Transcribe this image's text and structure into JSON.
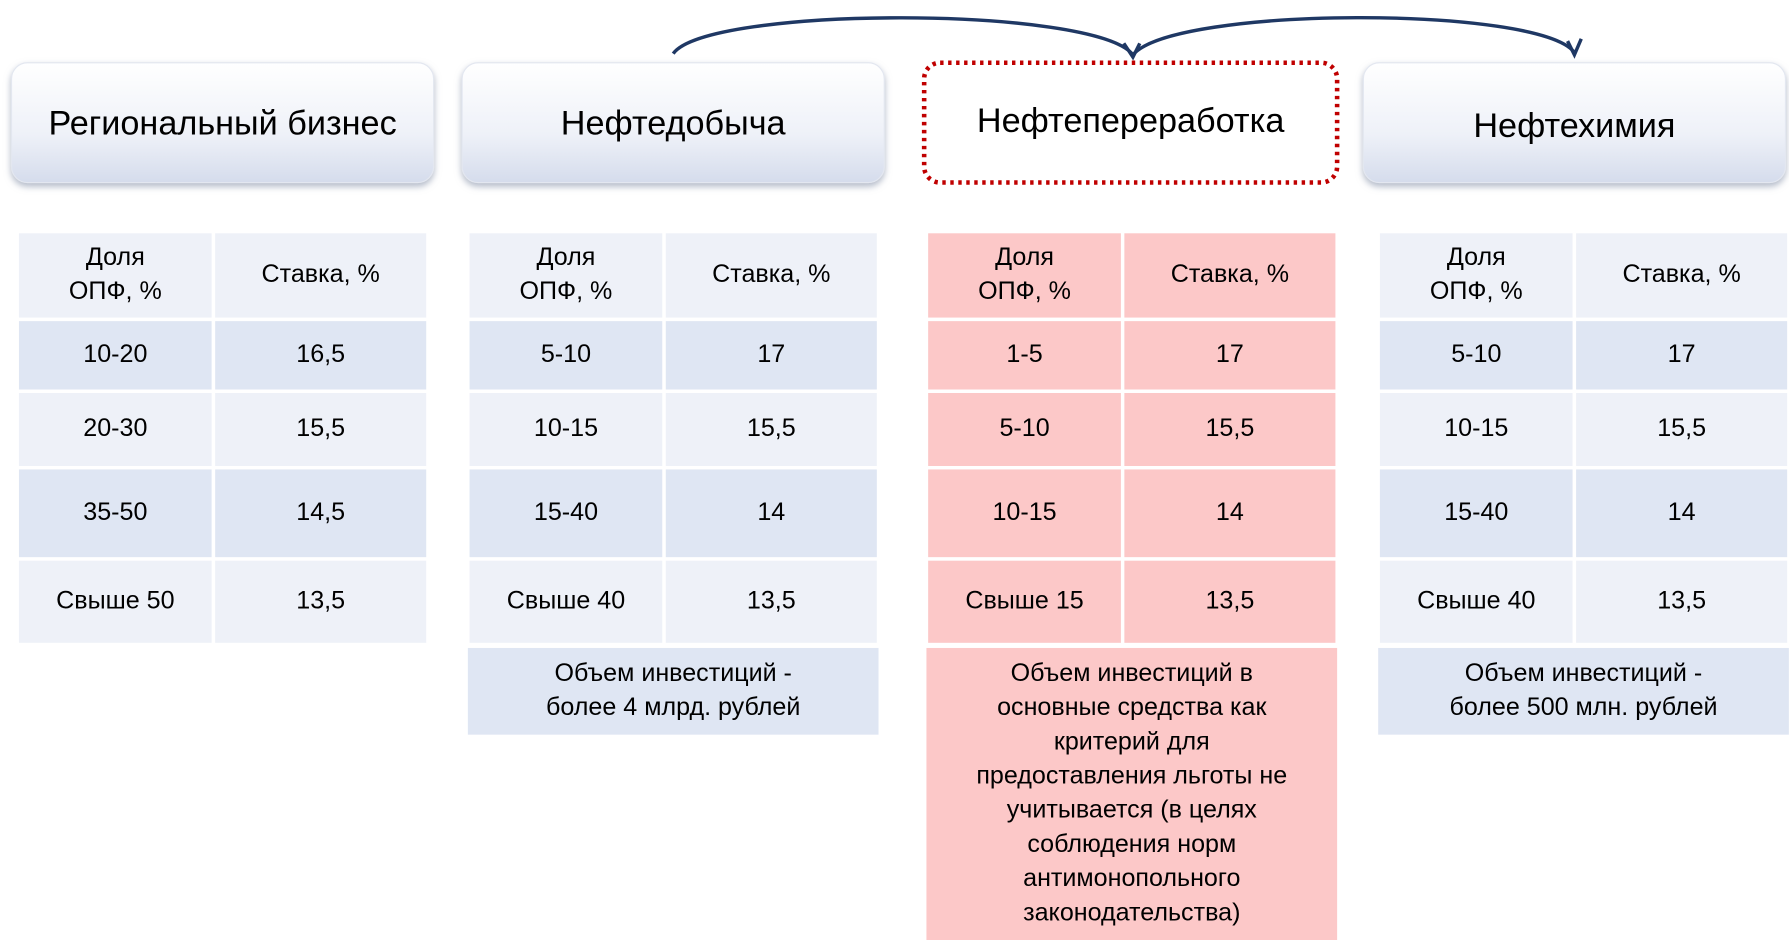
{
  "columns": [
    {
      "title": "Региональный бизнес",
      "header": [
        [
          "Доля",
          "ОПФ, %"
        ],
        [
          "Ставка, %"
        ]
      ],
      "rows": [
        [
          "10-20",
          "16,5"
        ],
        [
          "20-30",
          "15,5"
        ],
        [
          "35-50",
          "14,5"
        ],
        [
          "Свыше 50",
          "13,5"
        ]
      ]
    },
    {
      "title": "Нефтедобыча",
      "header": [
        [
          "Доля",
          "ОПФ, %"
        ],
        [
          "Ставка, %"
        ]
      ],
      "rows": [
        [
          "5-10",
          "17"
        ],
        [
          "10-15",
          "15,5"
        ],
        [
          "15-40",
          "14"
        ],
        [
          "Свыше 40",
          "13,5"
        ]
      ],
      "note": [
        "Объем инвестиций  -",
        "более 4 млрд. рублей"
      ]
    },
    {
      "title": "Нефтепереработка",
      "header": [
        [
          "Доля",
          "ОПФ, %"
        ],
        [
          "Ставка, %"
        ]
      ],
      "rows": [
        [
          "1-5",
          "17"
        ],
        [
          "5-10",
          "15,5"
        ],
        [
          "10-15",
          "14"
        ],
        [
          "Свыше 15",
          "13,5"
        ]
      ],
      "note": [
        "Объем инвестиций в",
        "основные средства как",
        "критерий для",
        "предоставления льготы  не",
        "учитывается (в целях",
        "соблюдения норм",
        "антимонопольного",
        "законодательства)"
      ]
    },
    {
      "title": "Нефтехимия",
      "header": [
        [
          "Доля",
          "ОПФ, %"
        ],
        [
          "Ставка, %"
        ]
      ],
      "rows": [
        [
          "5-10",
          "17"
        ],
        [
          "10-15",
          "15,5"
        ],
        [
          "15-40",
          "14"
        ],
        [
          "Свыше 40",
          "13,5"
        ]
      ],
      "note": [
        "Объем инвестиций  -",
        "более 500 млн. рублей"
      ]
    }
  ]
}
